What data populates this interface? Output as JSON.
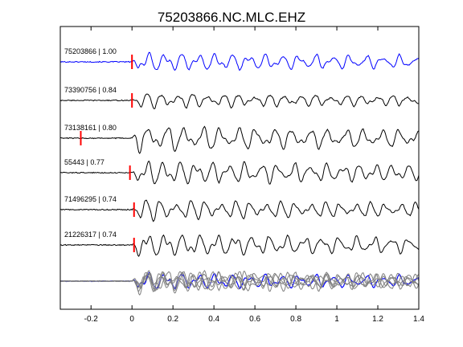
{
  "chart_data": {
    "type": "line",
    "title": "75203866.NC.MLC.EHZ",
    "xlabel": "",
    "ylabel": "",
    "xlim": [
      -0.35,
      1.4
    ],
    "x_ticks": [
      "-0.2",
      "0",
      "0.2",
      "0.4",
      "0.6",
      "0.8",
      "1",
      "1.2",
      "1.4"
    ],
    "x_tick_values": [
      -0.2,
      0,
      0.2,
      0.4,
      0.6,
      0.8,
      1.0,
      1.2,
      1.4
    ],
    "grid": false,
    "colors": {
      "primary": "#0000ff",
      "secondary": "#000000",
      "overlay": "#808080",
      "pick": "#ff0000"
    },
    "series": [
      {
        "label": "75203866 | 1.00",
        "pick_time": 0.0,
        "color": "#0000ff"
      },
      {
        "label": "73390756 | 0.84",
        "pick_time": 0.0,
        "color": "#000000"
      },
      {
        "label": "73138161 | 0.80",
        "pick_time": -0.25,
        "color": "#000000"
      },
      {
        "label": "55443 | 0.77",
        "pick_time": -0.01,
        "color": "#000000"
      },
      {
        "label": "71496295 | 0.74",
        "pick_time": 0.01,
        "color": "#000000"
      },
      {
        "label": "21226317 | 0.74",
        "pick_time": 0.01,
        "color": "#000000"
      }
    ]
  }
}
